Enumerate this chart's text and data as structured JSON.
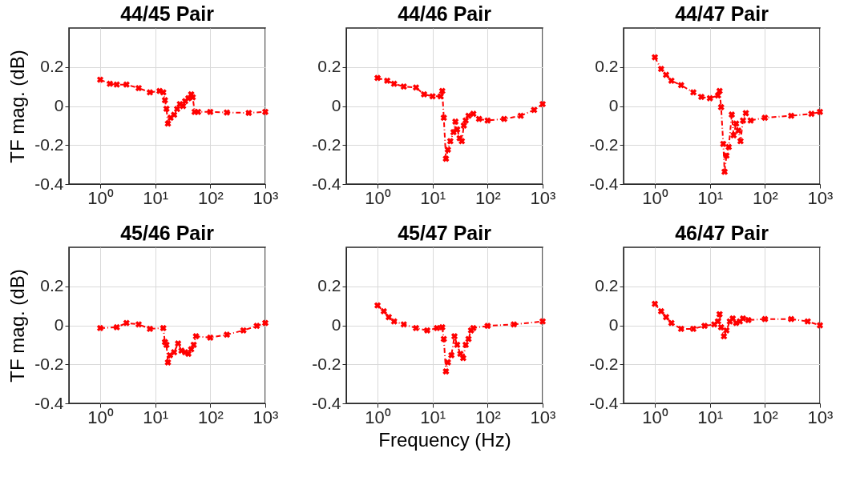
{
  "chart_data": [
    {
      "type": "line",
      "title": "44/45 Pair",
      "ylabel": "TF mag. (dB)",
      "log": "x",
      "grid": true,
      "marker": "cross",
      "line_style": "dashed",
      "xlim": [
        0.27,
        1000
      ],
      "ylim": [
        -0.4,
        0.4
      ],
      "xticks": [
        {
          "value": 1,
          "label": "10⁰"
        },
        {
          "value": 10,
          "label": "10¹"
        },
        {
          "value": 100,
          "label": "10²"
        },
        {
          "value": 1000,
          "label": "10³"
        }
      ],
      "yticks": [
        -0.4,
        -0.2,
        0,
        0.2
      ],
      "x": [
        1,
        1.5,
        2,
        3,
        5,
        8,
        12,
        14,
        15,
        16,
        17,
        19,
        22,
        25,
        28,
        32,
        35,
        40,
        45,
        48,
        52,
        60,
        100,
        200,
        500,
        1000
      ],
      "series": [
        {
          "color": "#ff0000",
          "values": [
            0.135,
            0.114,
            0.11,
            0.11,
            0.092,
            0.07,
            0.077,
            0.07,
            0.03,
            -0.014,
            -0.09,
            -0.06,
            -0.045,
            -0.015,
            0.01,
            0.0,
            0.025,
            0.04,
            0.06,
            0.045,
            -0.03,
            -0.03,
            -0.03,
            -0.033,
            -0.035,
            -0.03
          ]
        }
      ]
    },
    {
      "type": "line",
      "title": "44/46 Pair",
      "log": "x",
      "grid": true,
      "marker": "cross",
      "line_style": "dashed",
      "xlim": [
        0.27,
        1000
      ],
      "ylim": [
        -0.4,
        0.4
      ],
      "xticks": [
        {
          "value": 1,
          "label": "10⁰"
        },
        {
          "value": 10,
          "label": "10¹"
        },
        {
          "value": 100,
          "label": "10²"
        },
        {
          "value": 1000,
          "label": "10³"
        }
      ],
      "yticks": [
        -0.4,
        -0.2,
        0,
        0.2
      ],
      "x": [
        1,
        1.5,
        2,
        3,
        5,
        7,
        10,
        14,
        15,
        16,
        17.5,
        19,
        21,
        24,
        26,
        28,
        31,
        34,
        37,
        40,
        45,
        55,
        70,
        100,
        200,
        400,
        700,
        1000
      ],
      "series": [
        {
          "color": "#ff0000",
          "values": [
            0.144,
            0.13,
            0.114,
            0.1,
            0.095,
            0.06,
            0.05,
            0.05,
            0.077,
            -0.06,
            -0.27,
            -0.224,
            -0.18,
            -0.134,
            -0.08,
            -0.12,
            -0.165,
            -0.18,
            -0.1,
            -0.074,
            -0.05,
            -0.04,
            -0.066,
            -0.074,
            -0.066,
            -0.05,
            -0.02,
            0.01
          ]
        }
      ]
    },
    {
      "type": "line",
      "title": "44/47 Pair",
      "log": "x",
      "grid": true,
      "marker": "cross",
      "line_style": "dashed",
      "xlim": [
        0.27,
        1000
      ],
      "ylim": [
        -0.4,
        0.4
      ],
      "xticks": [
        {
          "value": 1,
          "label": "10⁰"
        },
        {
          "value": 10,
          "label": "10¹"
        },
        {
          "value": 100,
          "label": "10²"
        },
        {
          "value": 1000,
          "label": "10³"
        }
      ],
      "yticks": [
        -0.4,
        -0.2,
        0,
        0.2
      ],
      "x": [
        1,
        1.3,
        1.6,
        2,
        3,
        5,
        7,
        10,
        14,
        15,
        16,
        17.5,
        18.5,
        20,
        22,
        25,
        27,
        30,
        33,
        36,
        40,
        45,
        55,
        100,
        300,
        700,
        1000
      ],
      "series": [
        {
          "color": "#ff0000",
          "values": [
            0.25,
            0.19,
            0.16,
            0.13,
            0.107,
            0.07,
            0.047,
            0.04,
            0.054,
            0.077,
            -0.006,
            -0.194,
            -0.337,
            -0.254,
            -0.21,
            -0.044,
            -0.15,
            -0.09,
            -0.126,
            -0.18,
            -0.074,
            -0.036,
            -0.074,
            -0.06,
            -0.05,
            -0.04,
            -0.03
          ]
        }
      ]
    },
    {
      "type": "line",
      "title": "45/46 Pair",
      "ylabel": "TF mag. (dB)",
      "log": "x",
      "grid": true,
      "marker": "cross",
      "line_style": "dashed",
      "xlim": [
        0.27,
        1000
      ],
      "ylim": [
        -0.4,
        0.4
      ],
      "xticks": [
        {
          "value": 1,
          "label": "10⁰"
        },
        {
          "value": 10,
          "label": "10¹"
        },
        {
          "value": 100,
          "label": "10²"
        },
        {
          "value": 1000,
          "label": "10³"
        }
      ],
      "yticks": [
        -0.4,
        -0.2,
        0,
        0.2
      ],
      "x": [
        1,
        2,
        3,
        5,
        8,
        14,
        15,
        16,
        17,
        18.5,
        22,
        26,
        30,
        35,
        40,
        45,
        50,
        55,
        100,
        200,
        400,
        700,
        1000
      ],
      "series": [
        {
          "color": "#ff0000",
          "values": [
            -0.014,
            -0.01,
            0.012,
            0.005,
            -0.018,
            -0.014,
            -0.086,
            -0.1,
            -0.19,
            -0.153,
            -0.138,
            -0.093,
            -0.13,
            -0.138,
            -0.146,
            -0.123,
            -0.1,
            -0.056,
            -0.063,
            -0.048,
            -0.026,
            -0.003,
            0.012
          ]
        }
      ]
    },
    {
      "type": "line",
      "title": "45/47 Pair",
      "xlabel": "Frequency (Hz)",
      "log": "x",
      "grid": true,
      "marker": "cross",
      "line_style": "dashed",
      "xlim": [
        0.27,
        1000
      ],
      "ylim": [
        -0.4,
        0.4
      ],
      "xticks": [
        {
          "value": 1,
          "label": "10⁰"
        },
        {
          "value": 10,
          "label": "10¹"
        },
        {
          "value": 100,
          "label": "10²"
        },
        {
          "value": 1000,
          "label": "10³"
        }
      ],
      "yticks": [
        -0.4,
        -0.2,
        0,
        0.2
      ],
      "x": [
        1,
        1.3,
        1.6,
        2,
        3,
        5,
        8,
        12,
        15,
        16,
        17.5,
        19,
        22,
        25,
        28,
        32,
        36,
        40,
        45,
        50,
        55,
        100,
        300,
        1000
      ],
      "series": [
        {
          "color": "#ff0000",
          "values": [
            0.102,
            0.072,
            0.042,
            0.02,
            0.005,
            -0.014,
            -0.026,
            -0.014,
            -0.01,
            -0.07,
            -0.236,
            -0.19,
            -0.153,
            -0.056,
            -0.1,
            -0.146,
            -0.168,
            -0.1,
            -0.07,
            -0.026,
            -0.014,
            -0.003,
            0.005,
            0.02
          ]
        }
      ]
    },
    {
      "type": "line",
      "title": "46/47 Pair",
      "log": "x",
      "grid": true,
      "marker": "cross",
      "line_style": "dashed",
      "xlim": [
        0.27,
        1000
      ],
      "ylim": [
        -0.4,
        0.4
      ],
      "xticks": [
        {
          "value": 1,
          "label": "10⁰"
        },
        {
          "value": 10,
          "label": "10¹"
        },
        {
          "value": 100,
          "label": "10²"
        },
        {
          "value": 1000,
          "label": "10³"
        }
      ],
      "yticks": [
        -0.4,
        -0.2,
        0,
        0.2
      ],
      "x": [
        1,
        1.3,
        1.6,
        2,
        3,
        5,
        8,
        12,
        14,
        15,
        16,
        18,
        20,
        23,
        26,
        30,
        35,
        40,
        50,
        100,
        300,
        600,
        1000
      ],
      "series": [
        {
          "color": "#ff0000",
          "values": [
            0.11,
            0.072,
            0.042,
            0.012,
            -0.018,
            -0.018,
            -0.003,
            0.005,
            0.02,
            0.057,
            -0.01,
            -0.056,
            -0.026,
            0.02,
            0.035,
            0.012,
            0.02,
            0.035,
            0.027,
            0.032,
            0.032,
            0.02,
            0.0
          ]
        }
      ]
    }
  ]
}
